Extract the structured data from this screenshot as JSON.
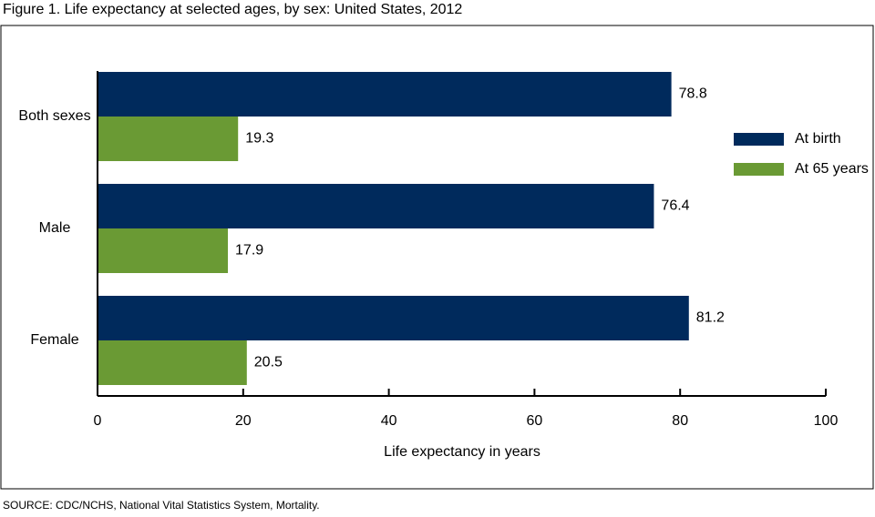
{
  "chart_data": {
    "type": "hbar",
    "title": "Figure 1. Life expectancy at selected ages, by sex: United States, 2012",
    "categories": [
      "Both sexes",
      "Male",
      "Female"
    ],
    "series": [
      {
        "name": "At birth",
        "color": "#002a5c",
        "values": [
          78.8,
          76.4,
          81.2
        ]
      },
      {
        "name": "At 65 years",
        "color": "#6a9a34",
        "values": [
          19.3,
          17.9,
          20.5
        ]
      }
    ],
    "xlim": [
      0,
      100
    ],
    "xticks": [
      0,
      20,
      40,
      60,
      80,
      100
    ],
    "xlabel": "Life expectancy in years",
    "source": "SOURCE: CDC/NCHS, National Vital Statistics System, Mortality."
  }
}
